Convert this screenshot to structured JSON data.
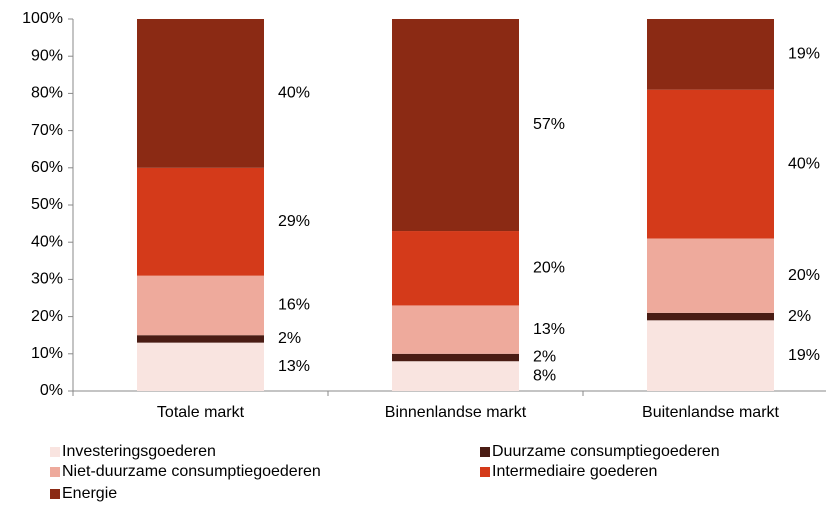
{
  "chart_data": {
    "type": "stacked_bar",
    "categories": [
      "Totale markt",
      "Binnenlandse markt",
      "Buitenlandse markt"
    ],
    "series": [
      {
        "name": "Investeringsgoederen",
        "color": "#f9e4e0",
        "values": [
          13,
          8,
          19
        ],
        "value_labels": [
          "13%",
          "8%",
          "19%"
        ]
      },
      {
        "name": "Duurzame consumptiegoederen",
        "color": "#4a1c14",
        "values": [
          2,
          2,
          2
        ],
        "value_labels": [
          "2%",
          "2%",
          "2%"
        ]
      },
      {
        "name": "Niet-duurzame consumptiegoederen",
        "color": "#eeaa9c",
        "values": [
          16,
          13,
          20
        ],
        "value_labels": [
          "16%",
          "13%",
          "20%"
        ]
      },
      {
        "name": "Intermediaire goederen",
        "color": "#d43a1a",
        "values": [
          29,
          20,
          40
        ],
        "value_labels": [
          "29%",
          "20%",
          "40%"
        ]
      },
      {
        "name": "Energie",
        "color": "#8b2a14",
        "values": [
          40,
          57,
          19
        ],
        "value_labels": [
          "40%",
          "57%",
          "19%"
        ]
      }
    ],
    "ylim": [
      0,
      100
    ],
    "yticks": [
      {
        "value": 0,
        "label": "0%"
      },
      {
        "value": 10,
        "label": "10%"
      },
      {
        "value": 20,
        "label": "20%"
      },
      {
        "value": 30,
        "label": "30%"
      },
      {
        "value": 40,
        "label": "40%"
      },
      {
        "value": 50,
        "label": "50%"
      },
      {
        "value": 60,
        "label": "60%"
      },
      {
        "value": 70,
        "label": "70%"
      },
      {
        "value": 80,
        "label": "80%"
      },
      {
        "value": 90,
        "label": "90%"
      },
      {
        "value": 100,
        "label": "100%"
      }
    ],
    "legend": "bottom"
  }
}
